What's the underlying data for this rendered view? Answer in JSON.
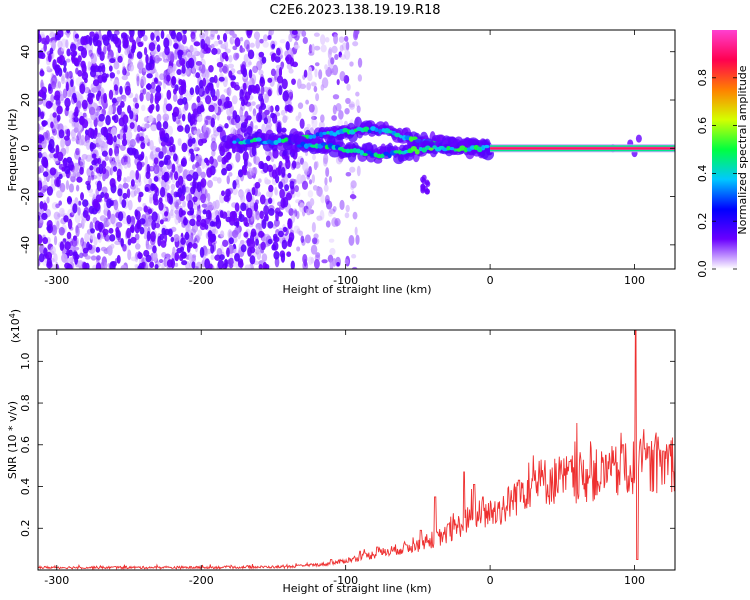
{
  "title": "C2E6.2023.138.19.19.R18",
  "chart_data": [
    {
      "type": "heatmap",
      "xlabel": "Height of straight line (km)",
      "ylabel": "Frequency (Hz)",
      "xlim": [
        -313,
        128
      ],
      "ylim": [
        -50,
        49
      ],
      "x_ticks": [
        -300,
        -200,
        -100,
        0,
        100
      ],
      "y_ticks": [
        -40,
        -20,
        0,
        20,
        40
      ],
      "colorbar": {
        "label": "Normalized spectral amplitude",
        "range": [
          0,
          1
        ],
        "ticks": [
          "0.0",
          "0.2",
          "0.4",
          "0.6",
          "0.8"
        ],
        "stops": [
          "#ffffff",
          "#6a00ff",
          "#0000ff",
          "#00c8ff",
          "#00ff40",
          "#d4ff00",
          "#ff8000",
          "#ff0050",
          "#ff40d0"
        ]
      },
      "features": {
        "tone_line": {
          "x_range": [
            0,
            128
          ],
          "frequency": 0,
          "amplitude": 0.95
        },
        "noise_region": {
          "x_range": [
            -313,
            -115
          ],
          "amplitude": 0.3
        },
        "upper_track": [
          [
            -185,
            3
          ],
          [
            -140,
            3
          ],
          [
            -110,
            6
          ],
          [
            -90,
            8
          ],
          [
            -70,
            7
          ],
          [
            -50,
            3
          ],
          [
            -30,
            1
          ],
          [
            -10,
            0.5
          ],
          [
            0,
            0
          ]
        ],
        "lower_track": [
          [
            -140,
            2
          ],
          [
            -115,
            1
          ],
          [
            -95,
            -1
          ],
          [
            -75,
            -3
          ],
          [
            -55,
            -1
          ],
          [
            -35,
            0
          ],
          [
            -15,
            0
          ],
          [
            0,
            0
          ]
        ]
      }
    },
    {
      "type": "line",
      "xlabel": "Height of straight line (km)",
      "ylabel": "SNR (10 * v/v)",
      "y_multiplier": "(x10",
      "y_multiplier_exp": "4",
      "y_multiplier_close": ")",
      "xlim": [
        -313,
        128
      ],
      "ylim": [
        0,
        1.15
      ],
      "x_ticks": [
        -300,
        -200,
        -100,
        0,
        100
      ],
      "y_ticks": [
        0.2,
        0.4,
        0.6,
        0.8,
        1.0
      ],
      "color": "#ee3030",
      "trend": [
        [
          -313,
          0.012
        ],
        [
          -200,
          0.012
        ],
        [
          -140,
          0.015
        ],
        [
          -110,
          0.03
        ],
        [
          -90,
          0.06
        ],
        [
          -70,
          0.09
        ],
        [
          -50,
          0.12
        ],
        [
          -30,
          0.17
        ],
        [
          -20,
          0.22
        ],
        [
          -10,
          0.26
        ],
        [
          0,
          0.27
        ],
        [
          10,
          0.3
        ],
        [
          20,
          0.37
        ],
        [
          30,
          0.42
        ],
        [
          50,
          0.43
        ],
        [
          70,
          0.45
        ],
        [
          90,
          0.47
        ],
        [
          110,
          0.5
        ],
        [
          128,
          0.52
        ]
      ],
      "spikes": [
        [
          -110,
          0.05
        ],
        [
          -90,
          0.09
        ],
        [
          -78,
          0.11
        ],
        [
          -58,
          0.12
        ],
        [
          -48,
          0.19
        ],
        [
          -38,
          0.35
        ],
        [
          -29,
          0.22
        ],
        [
          -18,
          0.47
        ],
        [
          -11,
          0.41
        ],
        [
          -5,
          0.35
        ],
        [
          20,
          0.43
        ],
        [
          55,
          0.52
        ],
        [
          80,
          0.55
        ],
        [
          92,
          0.6
        ],
        [
          101,
          1.15
        ],
        [
          102,
          0.05
        ],
        [
          110,
          0.59
        ],
        [
          120,
          0.57
        ]
      ]
    }
  ]
}
